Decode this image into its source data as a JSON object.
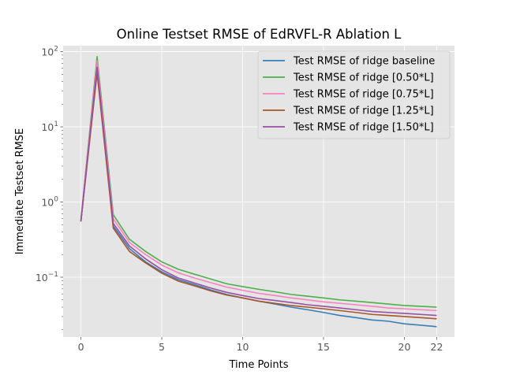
{
  "chart_data": {
    "type": "line",
    "title": "Online Testset RMSE of EdRVFL-R Ablation L",
    "xlabel": "Time Points",
    "ylabel": "Immediate Testset RMSE",
    "y_scale": "log",
    "xlim": [
      -1.1,
      23.1
    ],
    "ylim": [
      0.016,
      120
    ],
    "xticks": [
      0,
      5,
      10,
      15,
      20,
      22
    ],
    "yticks": [
      {
        "value": 0.1,
        "label": "10"
      },
      {
        "value": 1,
        "label": "10"
      },
      {
        "value": 10,
        "label": "10"
      },
      {
        "value": 100,
        "label": "10"
      }
    ],
    "ytick_exponents": [
      "−1",
      "0",
      "1",
      "2"
    ],
    "grid": true,
    "legend_position": "top-right",
    "background": "#e5e5e5",
    "x": [
      0,
      1,
      2,
      3,
      4,
      5,
      6,
      7,
      8,
      9,
      10,
      11,
      12,
      13,
      14,
      15,
      16,
      17,
      18,
      19,
      20,
      21,
      22
    ],
    "series": [
      {
        "name": "Test RMSE of ridge baseline",
        "color": "#377eb8",
        "values": [
          0.55,
          70,
          0.48,
          0.24,
          0.16,
          0.118,
          0.093,
          0.08,
          0.068,
          0.059,
          0.053,
          0.048,
          0.044,
          0.04,
          0.037,
          0.034,
          0.031,
          0.029,
          0.027,
          0.026,
          0.024,
          0.023,
          0.022
        ]
      },
      {
        "name": "Test RMSE of ridge [0.50*L]",
        "color": "#4daf4a",
        "values": [
          0.58,
          86,
          0.68,
          0.32,
          0.22,
          0.16,
          0.128,
          0.11,
          0.095,
          0.082,
          0.075,
          0.069,
          0.064,
          0.059,
          0.056,
          0.053,
          0.05,
          0.048,
          0.046,
          0.044,
          0.042,
          0.041,
          0.04
        ]
      },
      {
        "name": "Test RMSE of ridge [0.75*L]",
        "color": "#f781bf",
        "values": [
          0.57,
          75,
          0.6,
          0.29,
          0.2,
          0.145,
          0.115,
          0.098,
          0.085,
          0.074,
          0.067,
          0.061,
          0.057,
          0.053,
          0.05,
          0.047,
          0.045,
          0.043,
          0.041,
          0.039,
          0.038,
          0.037,
          0.036
        ]
      },
      {
        "name": "Test RMSE of ridge [1.25*L]",
        "color": "#a65628",
        "values": [
          0.55,
          52,
          0.45,
          0.22,
          0.155,
          0.113,
          0.089,
          0.077,
          0.066,
          0.058,
          0.053,
          0.048,
          0.045,
          0.042,
          0.04,
          0.038,
          0.036,
          0.034,
          0.032,
          0.031,
          0.03,
          0.029,
          0.028
        ]
      },
      {
        "name": "Test RMSE of ridge [1.50*L]",
        "color": "#984ea3",
        "values": [
          0.56,
          62,
          0.52,
          0.26,
          0.175,
          0.126,
          0.098,
          0.084,
          0.072,
          0.063,
          0.057,
          0.052,
          0.049,
          0.046,
          0.043,
          0.041,
          0.039,
          0.037,
          0.035,
          0.034,
          0.033,
          0.032,
          0.031
        ]
      }
    ]
  }
}
